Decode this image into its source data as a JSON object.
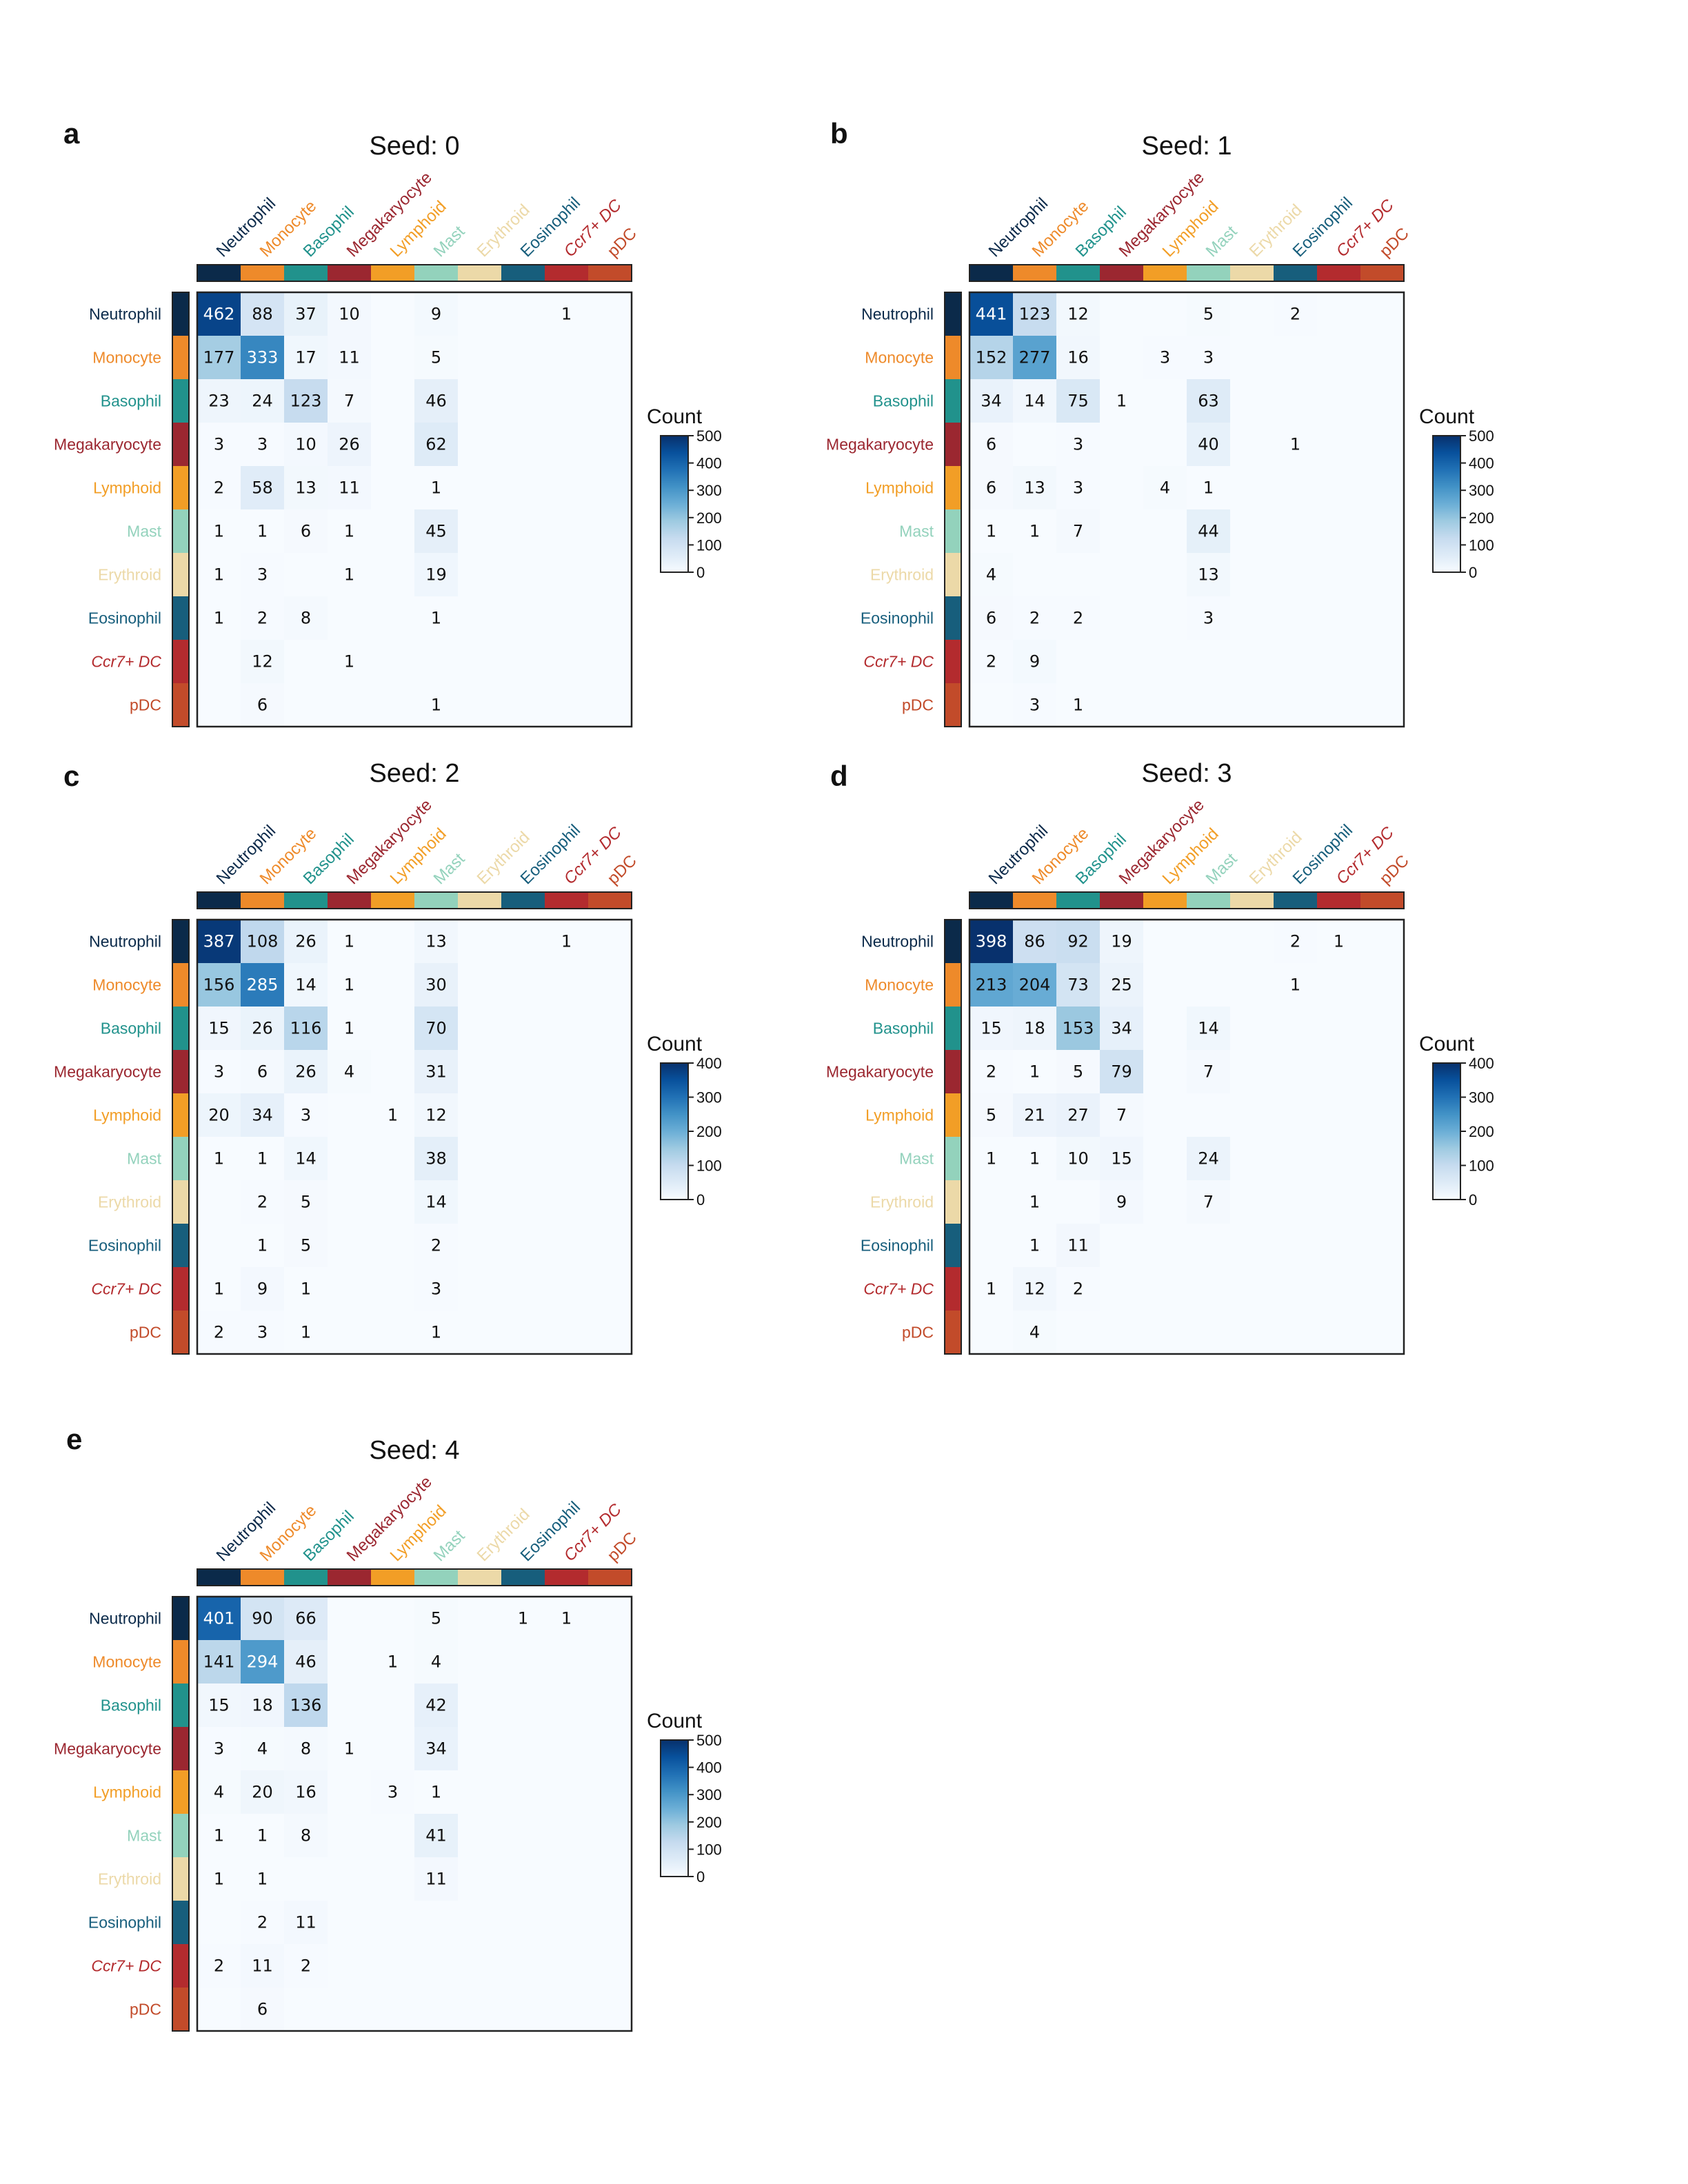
{
  "colors": {
    "categories": {
      "Neutrophil": "#0b2a4a",
      "Monocyte": "#ee8a2a",
      "Basophil": "#21928c",
      "Megakaryocyte": "#9b2730",
      "Lymphoid": "#f29e26",
      "Mast": "#93d2bc",
      "Erythroid": "#ecd9a8",
      "Eosinophil": "#175e7c",
      "Ccr7+ DC": "#b32b2e",
      "pDC": "#c24b2a"
    },
    "colorscale": [
      "#f7fbff",
      "#deebf7",
      "#c6dbef",
      "#9ecae1",
      "#6baed6",
      "#4292c6",
      "#2171b5",
      "#08519c",
      "#08306b"
    ]
  },
  "chart_data": [
    {
      "type": "heatmap",
      "panel_label": "a",
      "title": "Seed: 0",
      "categories": [
        "Neutrophil",
        "Monocyte",
        "Basophil",
        "Megakaryocyte",
        "Lymphoid",
        "Mast",
        "Erythroid",
        "Eosinophil",
        "Ccr7+ DC",
        "pDC"
      ],
      "values": [
        [
          462,
          88,
          37,
          10,
          0,
          9,
          0,
          0,
          1,
          0
        ],
        [
          177,
          333,
          17,
          11,
          0,
          5,
          0,
          0,
          0,
          0
        ],
        [
          23,
          24,
          123,
          7,
          0,
          46,
          0,
          0,
          0,
          0
        ],
        [
          3,
          3,
          10,
          26,
          0,
          62,
          0,
          0,
          0,
          0
        ],
        [
          2,
          58,
          13,
          11,
          0,
          1,
          0,
          0,
          0,
          0
        ],
        [
          1,
          1,
          6,
          1,
          0,
          45,
          0,
          0,
          0,
          0
        ],
        [
          1,
          3,
          0,
          1,
          0,
          19,
          0,
          0,
          0,
          0
        ],
        [
          1,
          2,
          8,
          0,
          0,
          1,
          0,
          0,
          0,
          0
        ],
        [
          0,
          12,
          0,
          1,
          0,
          0,
          0,
          0,
          0,
          0
        ],
        [
          0,
          6,
          0,
          0,
          0,
          1,
          0,
          0,
          0,
          0
        ]
      ],
      "colorbar_title": "Count",
      "colorbar_range": [
        0,
        500
      ],
      "colorbar_ticks": [
        0,
        100,
        200,
        300,
        400,
        500
      ]
    },
    {
      "type": "heatmap",
      "panel_label": "b",
      "title": "Seed: 1",
      "categories": [
        "Neutrophil",
        "Monocyte",
        "Basophil",
        "Megakaryocyte",
        "Lymphoid",
        "Mast",
        "Erythroid",
        "Eosinophil",
        "Ccr7+ DC",
        "pDC"
      ],
      "values": [
        [
          441,
          123,
          12,
          0,
          0,
          5,
          0,
          2,
          0,
          0
        ],
        [
          152,
          277,
          16,
          0,
          3,
          3,
          0,
          0,
          0,
          0
        ],
        [
          34,
          14,
          75,
          1,
          0,
          63,
          0,
          0,
          0,
          0
        ],
        [
          6,
          0,
          3,
          0,
          0,
          40,
          0,
          1,
          0,
          0
        ],
        [
          6,
          13,
          3,
          0,
          4,
          1,
          0,
          0,
          0,
          0
        ],
        [
          1,
          1,
          7,
          0,
          0,
          44,
          0,
          0,
          0,
          0
        ],
        [
          4,
          0,
          0,
          0,
          0,
          13,
          0,
          0,
          0,
          0
        ],
        [
          6,
          2,
          2,
          0,
          0,
          3,
          0,
          0,
          0,
          0
        ],
        [
          2,
          9,
          0,
          0,
          0,
          0,
          0,
          0,
          0,
          0
        ],
        [
          0,
          3,
          1,
          0,
          0,
          0,
          0,
          0,
          0,
          0
        ]
      ],
      "colorbar_title": "Count",
      "colorbar_range": [
        0,
        500
      ],
      "colorbar_ticks": [
        0,
        100,
        200,
        300,
        400,
        500
      ]
    },
    {
      "type": "heatmap",
      "panel_label": "c",
      "title": "Seed: 2",
      "categories": [
        "Neutrophil",
        "Monocyte",
        "Basophil",
        "Megakaryocyte",
        "Lymphoid",
        "Mast",
        "Erythroid",
        "Eosinophil",
        "Ccr7+ DC",
        "pDC"
      ],
      "values": [
        [
          387,
          108,
          26,
          1,
          0,
          13,
          0,
          0,
          1,
          0
        ],
        [
          156,
          285,
          14,
          1,
          0,
          30,
          0,
          0,
          0,
          0
        ],
        [
          15,
          26,
          116,
          1,
          0,
          70,
          0,
          0,
          0,
          0
        ],
        [
          3,
          6,
          26,
          4,
          0,
          31,
          0,
          0,
          0,
          0
        ],
        [
          20,
          34,
          3,
          0,
          1,
          12,
          0,
          0,
          0,
          0
        ],
        [
          1,
          1,
          14,
          0,
          0,
          38,
          0,
          0,
          0,
          0
        ],
        [
          0,
          2,
          5,
          0,
          0,
          14,
          0,
          0,
          0,
          0
        ],
        [
          0,
          1,
          5,
          0,
          0,
          2,
          0,
          0,
          0,
          0
        ],
        [
          1,
          9,
          1,
          0,
          0,
          3,
          0,
          0,
          0,
          0
        ],
        [
          2,
          3,
          1,
          0,
          0,
          1,
          0,
          0,
          0,
          0
        ]
      ],
      "colorbar_title": "Count",
      "colorbar_range": [
        0,
        400
      ],
      "colorbar_ticks": [
        0,
        100,
        200,
        300,
        400
      ]
    },
    {
      "type": "heatmap",
      "panel_label": "d",
      "title": "Seed: 3",
      "categories": [
        "Neutrophil",
        "Monocyte",
        "Basophil",
        "Megakaryocyte",
        "Lymphoid",
        "Mast",
        "Erythroid",
        "Eosinophil",
        "Ccr7+ DC",
        "pDC"
      ],
      "values": [
        [
          398,
          86,
          92,
          19,
          0,
          0,
          0,
          2,
          1,
          0
        ],
        [
          213,
          204,
          73,
          25,
          0,
          0,
          0,
          1,
          0,
          0
        ],
        [
          15,
          18,
          153,
          34,
          0,
          14,
          0,
          0,
          0,
          0
        ],
        [
          2,
          1,
          5,
          79,
          0,
          7,
          0,
          0,
          0,
          0
        ],
        [
          5,
          21,
          27,
          7,
          0,
          0,
          0,
          0,
          0,
          0
        ],
        [
          1,
          1,
          10,
          15,
          0,
          24,
          0,
          0,
          0,
          0
        ],
        [
          0,
          1,
          0,
          9,
          0,
          7,
          0,
          0,
          0,
          0
        ],
        [
          0,
          1,
          11,
          0,
          0,
          0,
          0,
          0,
          0,
          0
        ],
        [
          1,
          12,
          2,
          0,
          0,
          0,
          0,
          0,
          0,
          0
        ],
        [
          0,
          4,
          0,
          0,
          0,
          0,
          0,
          0,
          0,
          0
        ]
      ],
      "colorbar_title": "Count",
      "colorbar_range": [
        0,
        400
      ],
      "colorbar_ticks": [
        0,
        100,
        200,
        300,
        400
      ]
    },
    {
      "type": "heatmap",
      "panel_label": "e",
      "title": "Seed: 4",
      "categories": [
        "Neutrophil",
        "Monocyte",
        "Basophil",
        "Megakaryocyte",
        "Lymphoid",
        "Mast",
        "Erythroid",
        "Eosinophil",
        "Ccr7+ DC",
        "pDC"
      ],
      "values": [
        [
          401,
          90,
          66,
          0,
          0,
          5,
          0,
          1,
          1,
          0
        ],
        [
          141,
          294,
          46,
          0,
          1,
          4,
          0,
          0,
          0,
          0
        ],
        [
          15,
          18,
          136,
          0,
          0,
          42,
          0,
          0,
          0,
          0
        ],
        [
          3,
          4,
          8,
          1,
          0,
          34,
          0,
          0,
          0,
          0
        ],
        [
          4,
          20,
          16,
          0,
          3,
          1,
          0,
          0,
          0,
          0
        ],
        [
          1,
          1,
          8,
          0,
          0,
          41,
          0,
          0,
          0,
          0
        ],
        [
          1,
          1,
          0,
          0,
          0,
          11,
          0,
          0,
          0,
          0
        ],
        [
          0,
          2,
          11,
          0,
          0,
          0,
          0,
          0,
          0,
          0
        ],
        [
          2,
          11,
          2,
          0,
          0,
          0,
          0,
          0,
          0,
          0
        ],
        [
          0,
          6,
          0,
          0,
          0,
          0,
          0,
          0,
          0,
          0
        ]
      ],
      "colorbar_title": "Count",
      "colorbar_range": [
        0,
        500
      ],
      "colorbar_ticks": [
        0,
        100,
        200,
        300,
        400,
        500
      ]
    }
  ]
}
